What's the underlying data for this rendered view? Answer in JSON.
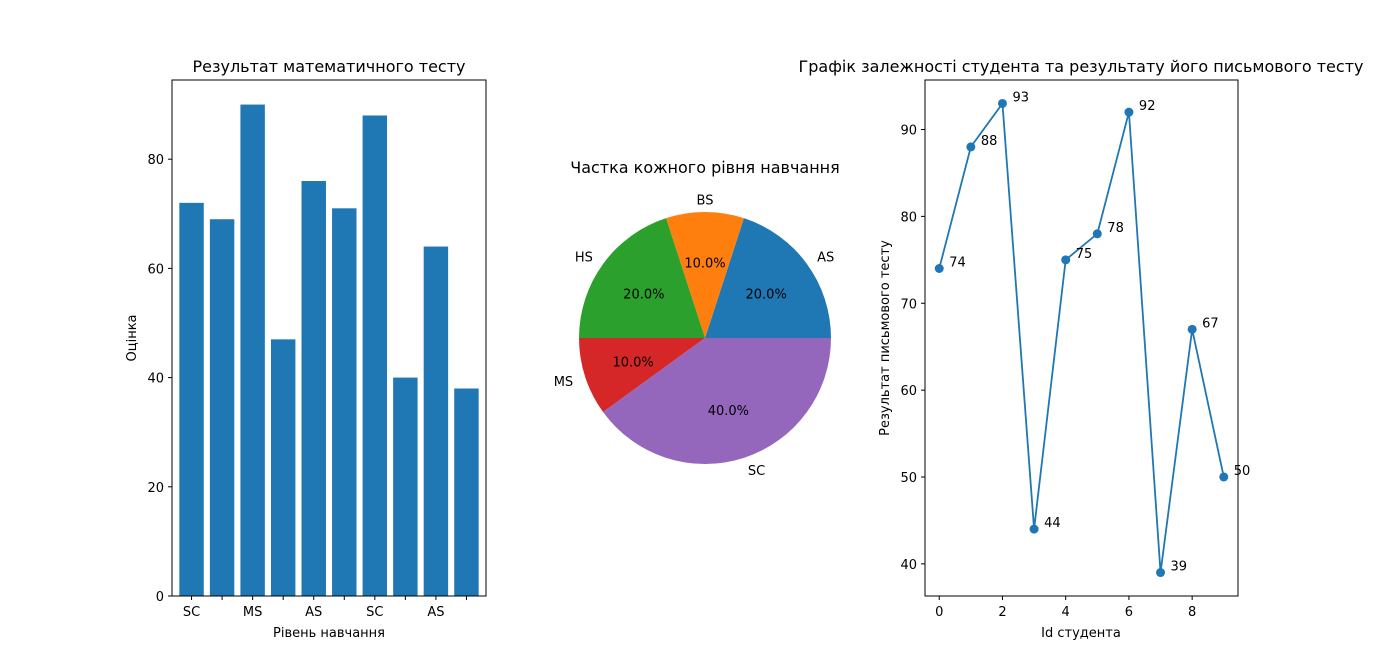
{
  "chart_data": [
    {
      "type": "bar",
      "title": "Результат математичного тесту",
      "xlabel": "Рівень навчання",
      "ylabel": "Оцінка",
      "values": [
        72,
        69,
        90,
        47,
        76,
        71,
        88,
        40,
        64,
        38
      ],
      "xtick_labels": [
        "SC",
        "MS",
        "AS",
        "SC",
        "AS"
      ],
      "ylim": [
        0,
        94.5
      ],
      "yticks": [
        0,
        20,
        40,
        60,
        80
      ],
      "color": "#1f77b4",
      "grid": false
    },
    {
      "type": "pie",
      "title": "Частка кожного рівня навчання",
      "slices": [
        {
          "label": "AS",
          "value": 20.0,
          "pct_label": "20.0%",
          "color": "#1f77b4"
        },
        {
          "label": "BS",
          "value": 10.0,
          "pct_label": "10.0%",
          "color": "#ff7f0e"
        },
        {
          "label": "HS",
          "value": 20.0,
          "pct_label": "20.0%",
          "color": "#2ca02c"
        },
        {
          "label": "MS",
          "value": 10.0,
          "pct_label": "10.0%",
          "color": "#d62728"
        },
        {
          "label": "SC",
          "value": 40.0,
          "pct_label": "40.0%",
          "color": "#9467bd"
        }
      ]
    },
    {
      "type": "line",
      "title": "Графік залежності студента та результату його письмового тесту",
      "xlabel": "Id студента",
      "ylabel": "Результат письмового тесту",
      "x": [
        0,
        1,
        2,
        3,
        4,
        5,
        6,
        7,
        8,
        9
      ],
      "y": [
        74,
        88,
        93,
        44,
        75,
        78,
        92,
        39,
        67,
        50
      ],
      "xlim": [
        -0.45,
        9.45
      ],
      "ylim": [
        36.3,
        95.7
      ],
      "xticks": [
        0,
        2,
        4,
        6,
        8
      ],
      "yticks": [
        40,
        50,
        60,
        70,
        80,
        90
      ],
      "color": "#1f77b4",
      "markers": true,
      "point_labels": true,
      "grid": false
    }
  ]
}
